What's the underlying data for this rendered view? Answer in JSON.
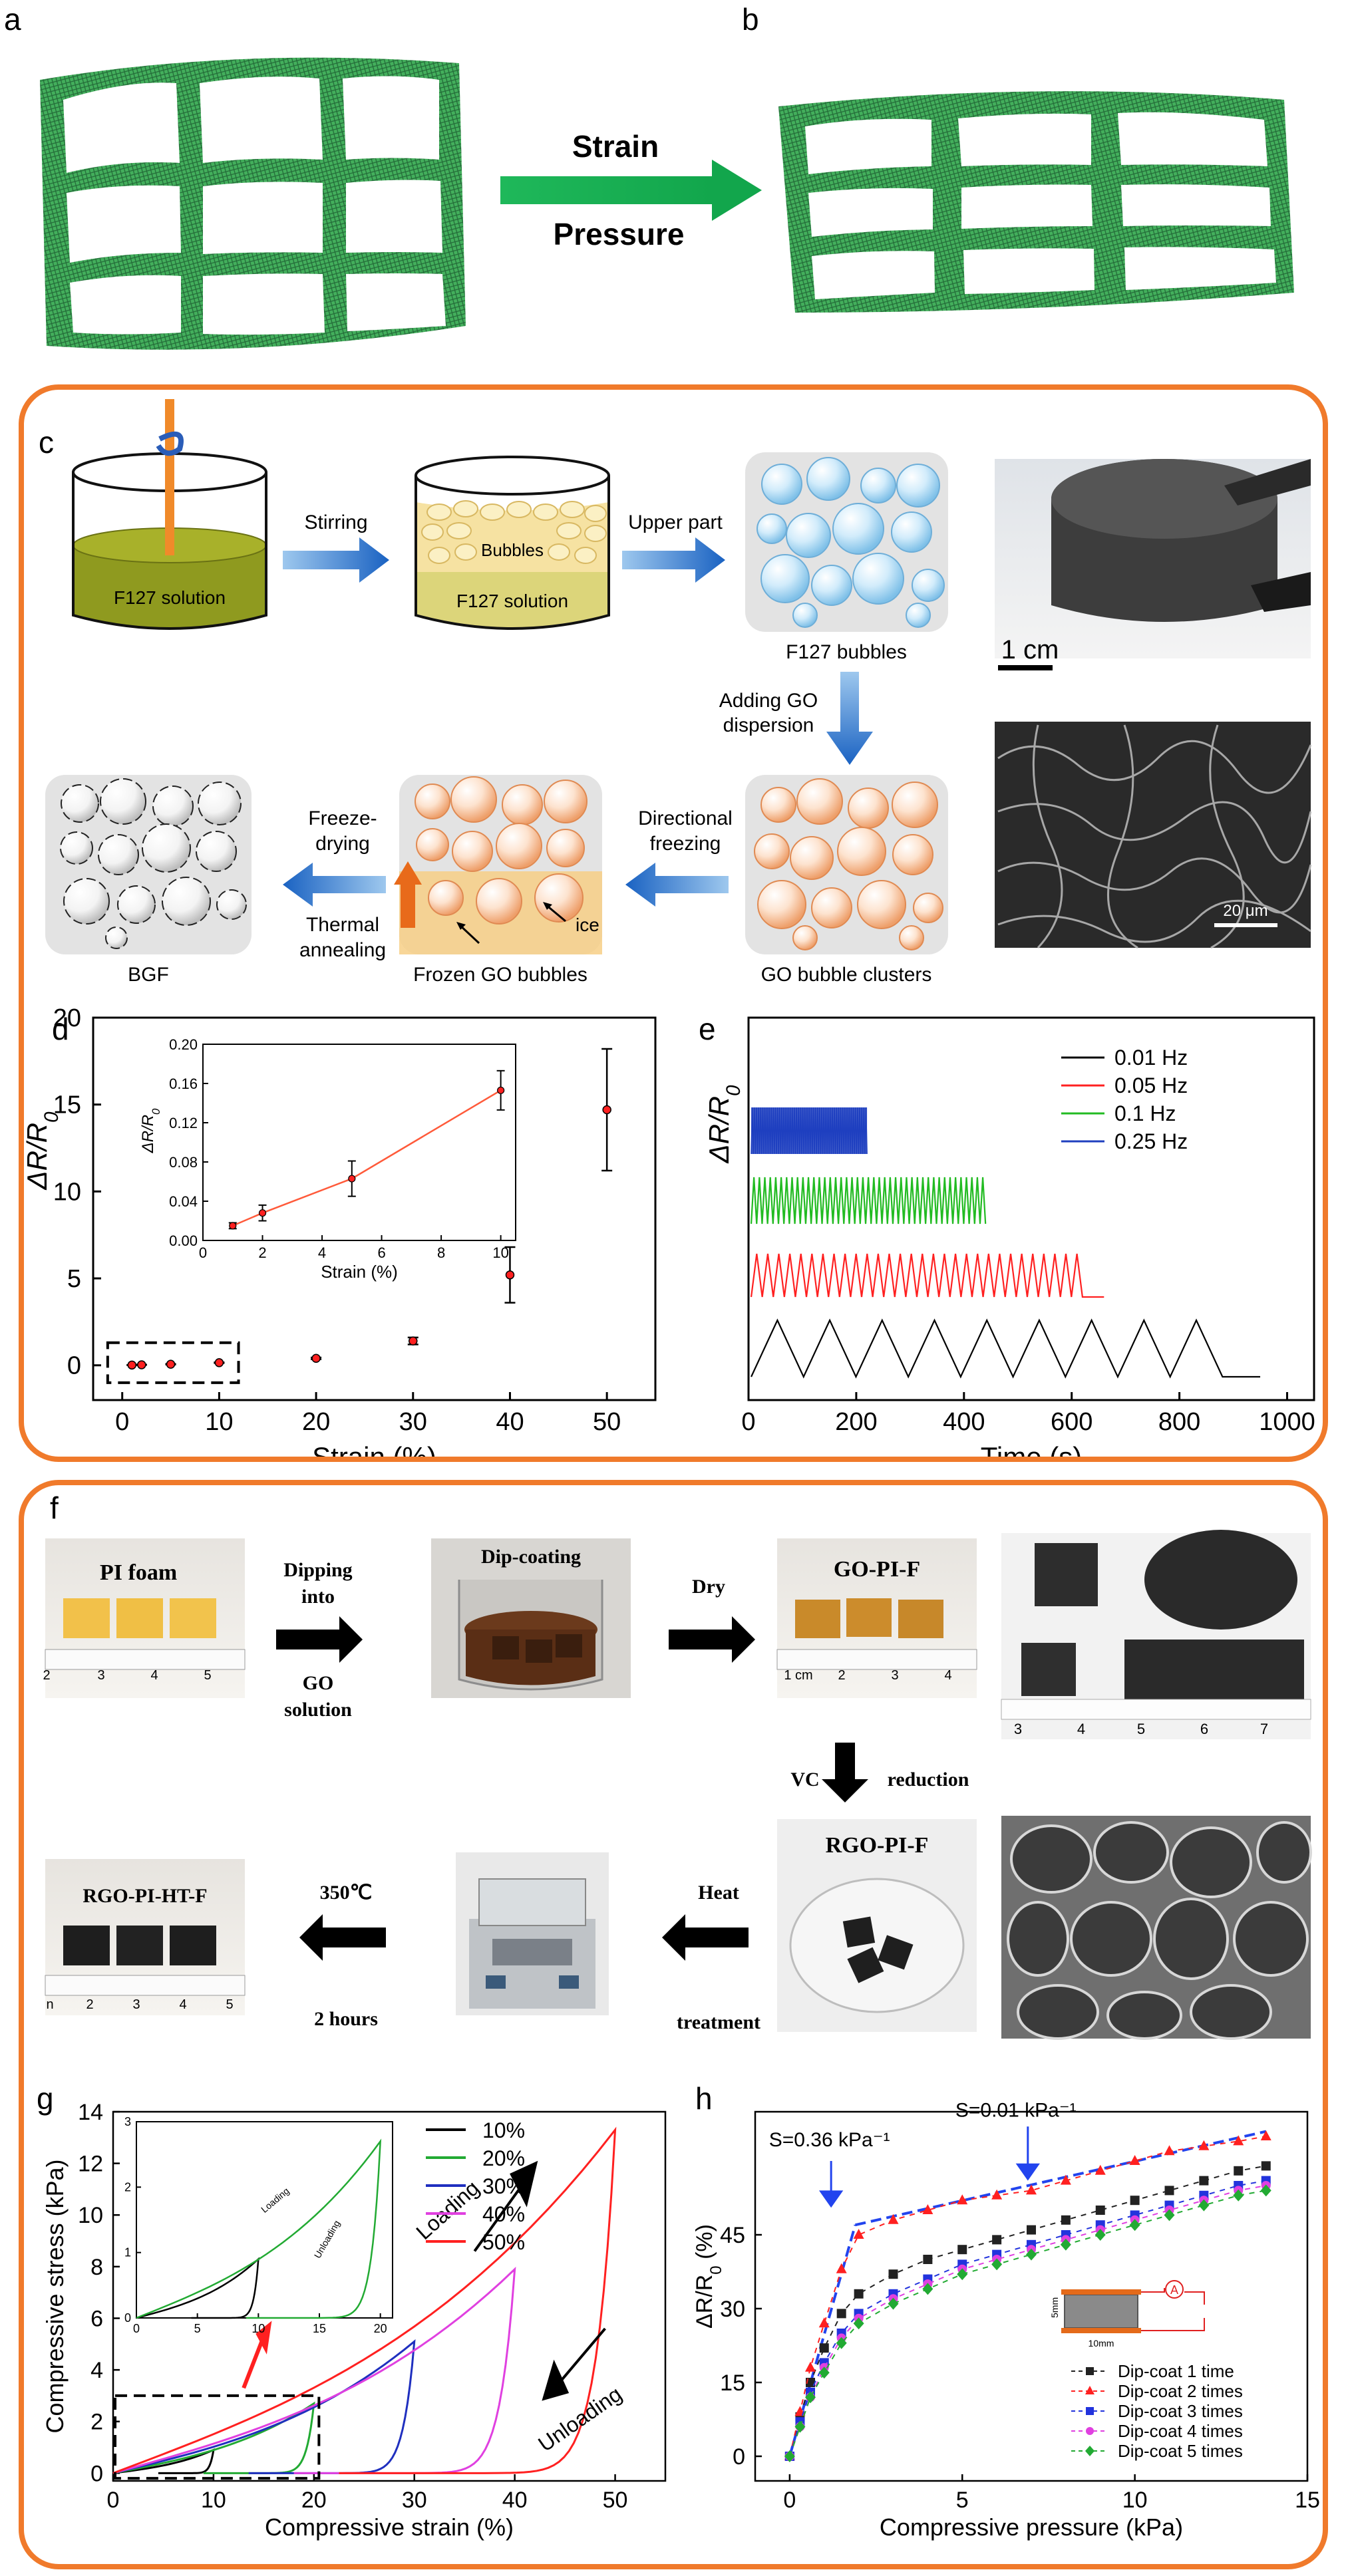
{
  "panels": {
    "a": "a",
    "b": "b",
    "c": "c",
    "d": "d",
    "e": "e",
    "f": "f",
    "g": "g",
    "h": "h"
  },
  "panel_ab": {
    "arrow_top": "Strain",
    "arrow_bottom": "Pressure"
  },
  "panel_c": {
    "beaker1": "F127 solution",
    "step1": "Stirring",
    "beaker2_top": "Bubbles",
    "beaker2": "F127 solution",
    "step2": "Upper part",
    "bubbles_caption": "F127 bubbles",
    "step3_line1": "Adding  GO",
    "step3_line2": "dispersion",
    "clusters_caption": "GO bubble  clusters",
    "step4_line1": "Directional",
    "step4_line2": "freezing",
    "frozen_caption": "Frozen GO bubbles",
    "ice_label": "ice",
    "step5_line1": "Freeze-",
    "step5_line2": "drying",
    "step5_line3": "Thermal",
    "step5_line4": "annealing",
    "bgf_caption": "BGF",
    "scale_photo": "1 cm",
    "scale_sem": "20 μm"
  },
  "panel_f": {
    "pi_foam": "PI foam",
    "step1_a": "Dipping",
    "step1_b": "into",
    "step1_c": "GO",
    "step1_d": "solution",
    "dipcoating": "Dip-coating",
    "step2": "Dry",
    "gopif": "GO-PI-F",
    "step3_a": "VC",
    "step3_b": "reduction",
    "rgopif": "RGO-PI-F",
    "step4_a": "Heat",
    "step4_b": "treatment",
    "step5_a": "350℃",
    "step5_b": "2 hours",
    "rgopihtf": "RGO-PI-HT-F",
    "ruler1": [
      "2",
      "3",
      "4",
      "5"
    ],
    "ruler2": [
      "1 cm",
      "2",
      "3",
      "4"
    ],
    "ruler3": [
      "n",
      "2",
      "3",
      "4",
      "5"
    ],
    "ruler4": [
      "3",
      "4",
      "5",
      "6",
      "7"
    ]
  },
  "chart_data": [
    {
      "id": "d",
      "type": "scatter",
      "xlabel": "Strain (%)",
      "ylabel": "ΔR/R0",
      "xlim": [
        -3,
        55
      ],
      "ylim": [
        -2,
        20
      ],
      "xticks": [
        "0",
        "10",
        "20",
        "30",
        "40",
        "50"
      ],
      "yticks": [
        "0",
        "5",
        "10",
        "15",
        "20"
      ],
      "points": [
        {
          "x": 1,
          "y": 0.015,
          "err": 0.005
        },
        {
          "x": 2,
          "y": 0.03,
          "err": 0.01
        },
        {
          "x": 5,
          "y": 0.06,
          "err": 0.02
        },
        {
          "x": 10,
          "y": 0.15,
          "err": 0.02
        },
        {
          "x": 20,
          "y": 0.4,
          "err": 0.05
        },
        {
          "x": 30,
          "y": 1.4,
          "err": 0.2
        },
        {
          "x": 40,
          "y": 5.2,
          "err": 1.6
        },
        {
          "x": 50,
          "y": 14.7,
          "err": 3.5
        }
      ],
      "inset": {
        "xlabel": "Strain (%)",
        "ylabel": "ΔR/R0",
        "xlim": [
          0,
          10.5
        ],
        "ylim": [
          0,
          0.2
        ],
        "xticks": [
          "0",
          "2",
          "4",
          "6",
          "8",
          "10"
        ],
        "yticks": [
          "0.00",
          "0.04",
          "0.08",
          "0.12",
          "0.16",
          "0.20"
        ],
        "x": [
          1,
          2,
          5,
          10
        ],
        "y": [
          0.015,
          0.028,
          0.063,
          0.153
        ],
        "err": [
          0.003,
          0.008,
          0.018,
          0.02
        ]
      }
    },
    {
      "id": "e",
      "type": "line",
      "xlabel": "Time (s)",
      "ylabel": "ΔR/R0",
      "xlim": [
        0,
        1050
      ],
      "xticks": [
        "0",
        "200",
        "400",
        "600",
        "800",
        "1000"
      ],
      "legend_position": "top-right",
      "series": [
        {
          "name": "0.01 Hz",
          "color": "#000000",
          "freq": 0.01,
          "t_end": 950,
          "cycles": 9
        },
        {
          "name": "0.05 Hz",
          "color": "#ff2020",
          "freq": 0.05,
          "t_end": 660,
          "cycles": 30
        },
        {
          "name": "0.1   Hz",
          "color": "#22bb22",
          "freq": 0.1,
          "t_end": 440,
          "cycles": 43
        },
        {
          "name": "0.25 Hz",
          "color": "#1f3fbf",
          "freq": 0.25,
          "t_end": 220,
          "cycles": 55
        }
      ]
    },
    {
      "id": "g",
      "type": "line",
      "xlabel": "Compressive strain (%)",
      "ylabel": "Compressive stress (kPa)",
      "xlim": [
        0,
        55
      ],
      "ylim": [
        -0.3,
        14
      ],
      "xticks": [
        "0",
        "10",
        "20",
        "30",
        "40",
        "50"
      ],
      "yticks": [
        "0",
        "2",
        "4",
        "6",
        "8",
        "10",
        "12",
        "14"
      ],
      "annotations": [
        "Loading",
        "Unloading"
      ],
      "legend_position": "top-right",
      "series": [
        {
          "name": "10%",
          "color": "#000000",
          "max_strain": 10,
          "max_stress": 0.9
        },
        {
          "name": "20%",
          "color": "#22aa33",
          "max_strain": 20,
          "max_stress": 2.7
        },
        {
          "name": "30%",
          "color": "#1f2fbf",
          "max_strain": 30,
          "max_stress": 5.1
        },
        {
          "name": "40%",
          "color": "#e040e0",
          "max_strain": 40,
          "max_stress": 7.9
        },
        {
          "name": "50%",
          "color": "#ff2020",
          "max_strain": 50,
          "max_stress": 13.3
        }
      ],
      "inset": {
        "xlim": [
          0,
          21
        ],
        "ylim": [
          0,
          3
        ],
        "xticks": [
          "0",
          "5",
          "10",
          "15",
          "20"
        ],
        "yticks": [
          "0",
          "1",
          "2",
          "3"
        ],
        "annotations": [
          "Loading",
          "Unloading"
        ]
      }
    },
    {
      "id": "h",
      "type": "scatter",
      "xlabel": "Compressive pressure (kPa)",
      "ylabel": "ΔR/R0 (%)",
      "xlim": [
        -1,
        15
      ],
      "ylim": [
        -5,
        70
      ],
      "xticks": [
        "0",
        "5",
        "10",
        "15"
      ],
      "yticks": [
        "0",
        "15",
        "30",
        "45"
      ],
      "annotations": [
        "S=0.36 kPa⁻¹",
        "S=0.01 kPa⁻¹"
      ],
      "legend_position": "bottom-right",
      "series": [
        {
          "name": "Dip-coat 1 time",
          "color": "#222222",
          "marker": "square",
          "x": [
            0,
            0.3,
            0.6,
            1,
            1.5,
            2,
            3,
            4,
            5,
            6,
            7,
            8,
            9,
            10,
            11,
            12,
            13,
            13.8
          ],
          "y": [
            0,
            8,
            15,
            22,
            29,
            33,
            37,
            40,
            42,
            44,
            46,
            48,
            50,
            52,
            54,
            56,
            58,
            59
          ]
        },
        {
          "name": "Dip-coat 2 times",
          "color": "#ff2020",
          "marker": "triangle",
          "x": [
            0,
            0.3,
            0.6,
            1,
            1.5,
            2,
            3,
            4,
            5,
            6,
            7,
            8,
            9,
            10,
            11,
            12,
            13,
            13.8
          ],
          "y": [
            0,
            9,
            18,
            27,
            38,
            45,
            48,
            50,
            52,
            53,
            54,
            56,
            58,
            60,
            62,
            63,
            64,
            65
          ]
        },
        {
          "name": "Dip-coat 3 times",
          "color": "#2233dd",
          "marker": "square",
          "x": [
            0,
            0.3,
            0.6,
            1,
            1.5,
            2,
            3,
            4,
            5,
            6,
            7,
            8,
            9,
            10,
            11,
            12,
            13,
            13.8
          ],
          "y": [
            0,
            7,
            13,
            19,
            25,
            29,
            33,
            36,
            39,
            41,
            43,
            45,
            47,
            49,
            51,
            53,
            55,
            56
          ]
        },
        {
          "name": "Dip-coat 4 times",
          "color": "#e040e0",
          "marker": "circle",
          "x": [
            0,
            0.3,
            0.6,
            1,
            1.5,
            2,
            3,
            4,
            5,
            6,
            7,
            8,
            9,
            10,
            11,
            12,
            13,
            13.8
          ],
          "y": [
            0,
            6,
            12,
            18,
            24,
            28,
            32,
            35,
            38,
            40,
            42,
            44,
            46,
            48,
            50,
            52,
            54,
            55
          ]
        },
        {
          "name": "Dip-coat 5 times",
          "color": "#22aa33",
          "marker": "diamond",
          "x": [
            0,
            0.3,
            0.6,
            1,
            1.5,
            2,
            3,
            4,
            5,
            6,
            7,
            8,
            9,
            10,
            11,
            12,
            13,
            13.8
          ],
          "y": [
            0,
            6,
            12,
            17,
            23,
            27,
            31,
            34,
            37,
            39,
            41,
            43,
            45,
            47,
            49,
            51,
            53,
            54
          ]
        }
      ],
      "inset_labels": [
        "5mm",
        "10mm",
        "A"
      ]
    }
  ]
}
